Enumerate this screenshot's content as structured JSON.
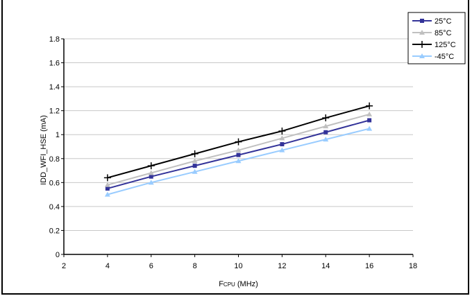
{
  "chart_data": {
    "type": "line",
    "title": "",
    "xlabel": "FCPU (MHz)",
    "xlabel_parts": {
      "main": "F",
      "sub": "CPU",
      "rest": " (MHz)"
    },
    "ylabel": "IDD_WFI_HSE (mA)",
    "xlim": [
      2,
      18
    ],
    "ylim": [
      0,
      1.8
    ],
    "xticks": [
      2,
      4,
      6,
      8,
      10,
      12,
      14,
      16,
      18
    ],
    "yticks": [
      0,
      0.2,
      0.4,
      0.6,
      0.8,
      1,
      1.2,
      1.4,
      1.6,
      1.8
    ],
    "ytick_labels": [
      "0",
      "0.2",
      "0.4",
      "0.6",
      "0.8",
      "1",
      "1.2",
      "1.4",
      "1.6",
      "1.8"
    ],
    "grid": "horizontal",
    "legend_position": "top-right",
    "x": [
      4,
      6,
      8,
      10,
      12,
      14,
      16
    ],
    "series": [
      {
        "name": "25°C",
        "color": "#333399",
        "marker": "square",
        "values": [
          0.55,
          0.65,
          0.74,
          0.83,
          0.92,
          1.02,
          1.12
        ]
      },
      {
        "name": "85°C",
        "color": "#c0c0c0",
        "marker": "triangle",
        "values": [
          0.58,
          0.68,
          0.78,
          0.87,
          0.97,
          1.07,
          1.17
        ]
      },
      {
        "name": "125°C",
        "color": "#000000",
        "marker": "plus",
        "values": [
          0.64,
          0.74,
          0.84,
          0.94,
          1.03,
          1.14,
          1.24
        ]
      },
      {
        "name": "-45°C",
        "color": "#99ccff",
        "marker": "triangle",
        "values": [
          0.5,
          0.6,
          0.69,
          0.78,
          0.87,
          0.96,
          1.05
        ]
      }
    ]
  }
}
